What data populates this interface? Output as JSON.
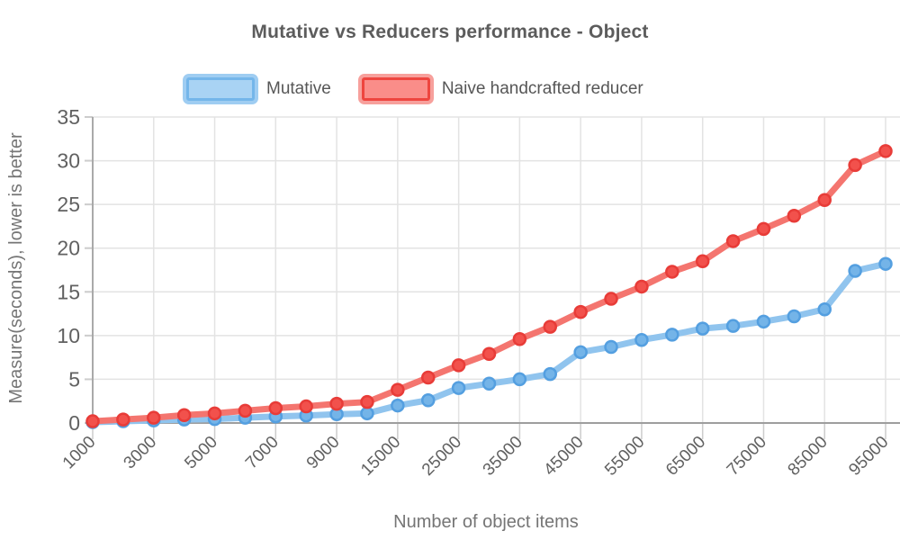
{
  "title": "Mutative vs Reducers performance - Object",
  "legend": {
    "items": [
      {
        "label": "Mutative",
        "swatch": "blue-swatch"
      },
      {
        "label": "Naive handcrafted reducer",
        "swatch": "red-swatch"
      }
    ]
  },
  "colors": {
    "grid": "#e3e3e3",
    "axis": "#9e9e9e",
    "axis_vertical": "#a9a9a9",
    "tick": "#cccccc",
    "text": "#616161",
    "axis_title_text": "#757575",
    "title_text": "#5c5c5c",
    "mutative_line": "#90c4ee",
    "mutative_marker": "#74b4e8",
    "mutative_marker_stroke": "#549fe0",
    "reducer_line": "#f4756f",
    "reducer_marker": "#f2514c",
    "reducer_marker_stroke": "#e83c38"
  },
  "chart_data": {
    "type": "line",
    "title": "Mutative vs Reducers performance - Object",
    "xlabel": "Number of object items",
    "ylabel": "Measure(seconds), lower is better",
    "legend_position": "top",
    "grid": true,
    "ylim": [
      0,
      35
    ],
    "y_ticks": [
      0,
      5,
      10,
      15,
      20,
      25,
      30,
      35
    ],
    "x": [
      1000,
      2000,
      3000,
      4000,
      5000,
      6000,
      7000,
      8000,
      9000,
      10000,
      15000,
      20000,
      25000,
      30000,
      35000,
      40000,
      45000,
      50000,
      55000,
      60000,
      65000,
      70000,
      75000,
      80000,
      85000,
      90000,
      95000
    ],
    "x_tick_labels": [
      "1000",
      "3000",
      "5000",
      "7000",
      "9000",
      "15000",
      "25000",
      "35000",
      "45000",
      "55000",
      "65000",
      "75000",
      "85000",
      "95000"
    ],
    "series": [
      {
        "id": "mutative",
        "name": "Mutative",
        "line_color": "#90c4ee",
        "marker_fill": "#74b4e8",
        "marker_stroke": "#549fe0",
        "values": [
          0.1,
          0.2,
          0.3,
          0.4,
          0.45,
          0.6,
          0.75,
          0.85,
          1.0,
          1.1,
          2.0,
          2.6,
          4.0,
          4.5,
          5.0,
          5.6,
          8.1,
          8.7,
          9.5,
          10.1,
          10.8,
          11.1,
          11.6,
          12.2,
          13.0,
          17.4,
          18.2
        ]
      },
      {
        "id": "reducer",
        "name": "Naive handcrafted reducer",
        "line_color": "#f4756f",
        "marker_fill": "#f2514c",
        "marker_stroke": "#e83c38",
        "values": [
          0.2,
          0.4,
          0.6,
          0.9,
          1.1,
          1.4,
          1.7,
          1.9,
          2.2,
          2.4,
          3.8,
          5.2,
          6.6,
          7.9,
          9.6,
          11.0,
          12.7,
          14.2,
          15.6,
          17.3,
          18.5,
          20.8,
          22.2,
          23.7,
          25.5,
          29.5,
          31.1
        ]
      }
    ]
  }
}
